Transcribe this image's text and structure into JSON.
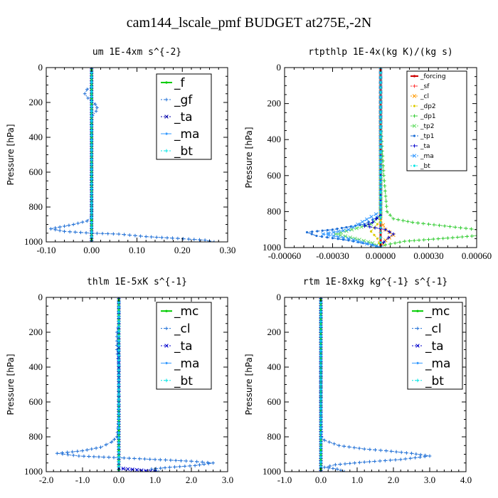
{
  "figure_title": "cam144_lscale_pmf  BUDGET at275E,-2N",
  "chart_data": [
    {
      "type": "line",
      "title": "um  1E-4xm s^{-2}",
      "ylabel": "Pressure [hPa]",
      "xlim": [
        -0.1,
        0.3
      ],
      "ylim": [
        1000,
        0
      ],
      "xticks": [
        "-0.10",
        "0.00",
        "0.10",
        "0.20",
        "0.30"
      ],
      "xtick_values": [
        -0.1,
        0.0,
        0.1,
        0.2,
        0.3
      ],
      "yticks": [
        "0",
        "200",
        "400",
        "600",
        "800",
        "1000"
      ],
      "ytick_values": [
        0,
        200,
        400,
        600,
        800,
        1000
      ],
      "legend_style": "large",
      "series": [
        {
          "name": "_f",
          "color": "#00cc00",
          "dash": "",
          "width": 3,
          "points": [
            [
              0,
              0
            ],
            [
              0,
              100
            ],
            [
              0,
              200
            ],
            [
              0,
              300
            ],
            [
              0,
              400
            ],
            [
              0,
              500
            ],
            [
              0,
              600
            ],
            [
              0,
              700
            ],
            [
              0,
              800
            ],
            [
              0,
              900
            ],
            [
              0,
              1000
            ]
          ]
        },
        {
          "name": "_gf",
          "color": "#1f6fd6",
          "dash": "2,2",
          "width": 1,
          "points": [
            [
              0,
              0
            ],
            [
              0,
              110
            ],
            [
              -0.01,
              125
            ],
            [
              -0.015,
              150
            ],
            [
              -0.008,
              175
            ],
            [
              0,
              190
            ],
            [
              0.008,
              210
            ],
            [
              0.012,
              230
            ],
            [
              0.01,
              250
            ],
            [
              0.002,
              275
            ],
            [
              0,
              300
            ],
            [
              0,
              500
            ],
            [
              0,
              700
            ],
            [
              0,
              850
            ],
            [
              -0.01,
              880
            ],
            [
              -0.04,
              900
            ],
            [
              -0.09,
              925
            ],
            [
              -0.06,
              940
            ],
            [
              0,
              950
            ],
            [
              0.06,
              955
            ],
            [
              0.12,
              970
            ],
            [
              0.19,
              980
            ],
            [
              0.25,
              990
            ],
            [
              0.27,
              1000
            ]
          ]
        },
        {
          "name": "_ta",
          "color": "#0000aa",
          "dash": "2,2",
          "width": 1,
          "points": [
            [
              0,
              0
            ],
            [
              0,
              500
            ],
            [
              0,
              1000
            ]
          ]
        },
        {
          "name": "_ma",
          "color": "#3399ff",
          "dash": "6,3",
          "width": 1,
          "points": [
            [
              0,
              0
            ],
            [
              0,
              500
            ],
            [
              0,
              1000
            ]
          ]
        },
        {
          "name": "_bt",
          "color": "#00e5e5",
          "dash": "2,2",
          "width": 1,
          "points": [
            [
              0,
              0
            ],
            [
              0,
              500
            ],
            [
              0,
              1000
            ]
          ]
        }
      ]
    },
    {
      "type": "line",
      "title": "rtpthlp  1E-4x(kg K)/(kg s)",
      "ylabel": "Pressure [hPa]",
      "xlim": [
        -0.0006,
        0.0006
      ],
      "ylim": [
        1000,
        0
      ],
      "xticks": [
        "-0.00060",
        "-0.00030",
        "0.00000",
        "0.00030",
        "0.00060"
      ],
      "xtick_values": [
        -0.0006,
        -0.0003,
        0.0,
        0.0003,
        0.0006
      ],
      "yticks": [
        "0",
        "200",
        "400",
        "600",
        "800",
        "1000"
      ],
      "ytick_values": [
        0,
        200,
        400,
        600,
        800,
        1000
      ],
      "legend_style": "small",
      "series": [
        {
          "name": "_forcing",
          "color": "#cc0000",
          "dash": "",
          "width": 3,
          "points": [
            [
              0,
              0
            ],
            [
              0,
              200
            ],
            [
              0,
              400
            ],
            [
              0,
              600
            ],
            [
              0,
              800
            ],
            [
              0,
              1000
            ]
          ]
        },
        {
          "name": "_sf",
          "color": "#ff3333",
          "dash": "2,2",
          "width": 1,
          "points": [
            [
              0,
              0
            ],
            [
              0,
              500
            ],
            [
              0,
              1000
            ]
          ]
        },
        {
          "name": "_cl",
          "color": "#ff9900",
          "dash": "2,2",
          "width": 1,
          "points": [
            [
              0,
              0
            ],
            [
              0,
              850
            ],
            [
              3e-05,
              900
            ],
            [
              8e-05,
              930
            ],
            [
              3e-05,
              960
            ],
            [
              0,
              1000
            ]
          ]
        },
        {
          "name": "_dp2",
          "color": "#ddcc00",
          "dash": "2,2",
          "width": 1,
          "points": [
            [
              0,
              0
            ],
            [
              0,
              850
            ],
            [
              -6e-05,
              910
            ],
            [
              -2e-05,
              950
            ],
            [
              0,
              1000
            ]
          ]
        },
        {
          "name": "_dp1",
          "color": "#33cc33",
          "dash": "2,2",
          "width": 1,
          "points": [
            [
              0,
              0
            ],
            [
              0,
              300
            ],
            [
              2e-05,
              600
            ],
            [
              4e-05,
              800
            ],
            [
              8e-05,
              840
            ],
            [
              0.0002,
              860
            ],
            [
              0.0004,
              880
            ],
            [
              0.0006,
              900
            ],
            [
              0.00072,
              925
            ],
            [
              0.00045,
              945
            ],
            [
              0.00015,
              965
            ],
            [
              3e-05,
              985
            ],
            [
              0,
              1000
            ]
          ]
        },
        {
          "name": "_tp2",
          "color": "#66dd66",
          "dash": "6,3",
          "width": 1,
          "points": [
            [
              0,
              0
            ],
            [
              0,
              820
            ],
            [
              -6e-05,
              870
            ],
            [
              -0.00018,
              900
            ],
            [
              -0.00028,
              925
            ],
            [
              -0.00016,
              950
            ],
            [
              -5e-05,
              975
            ],
            [
              0,
              1000
            ]
          ]
        },
        {
          "name": "_tp1",
          "color": "#1f6fd6",
          "dash": "6,3",
          "width": 1,
          "points": [
            [
              0,
              0
            ],
            [
              0,
              820
            ],
            [
              -0.0001,
              870
            ],
            [
              -0.0003,
              900
            ],
            [
              -0.00046,
              915
            ],
            [
              -0.0004,
              935
            ],
            [
              -0.0002,
              960
            ],
            [
              -5e-05,
              985
            ],
            [
              0,
              1000
            ]
          ]
        },
        {
          "name": "_ta",
          "color": "#0000cc",
          "dash": "2,2",
          "width": 1,
          "points": [
            [
              0,
              0
            ],
            [
              0,
              820
            ],
            [
              -5e-05,
              860
            ],
            [
              -0.0001,
              880
            ],
            [
              3e-05,
              900
            ],
            [
              8e-05,
              925
            ],
            [
              5e-05,
              945
            ],
            [
              2e-05,
              970
            ],
            [
              0,
              1000
            ]
          ]
        },
        {
          "name": "_ma",
          "color": "#3399ff",
          "dash": "6,3",
          "width": 1,
          "points": [
            [
              0,
              0
            ],
            [
              0,
              800
            ],
            [
              -0.0002,
              900
            ],
            [
              -0.00036,
              925
            ],
            [
              -0.0002,
              950
            ],
            [
              0,
              1000
            ]
          ]
        },
        {
          "name": "_bt",
          "color": "#00e5e5",
          "dash": "2,2",
          "width": 1,
          "points": [
            [
              0,
              0
            ],
            [
              0,
              500
            ],
            [
              0,
              1000
            ]
          ]
        }
      ]
    },
    {
      "type": "line",
      "title": "thlm  1E-5xK s^{-1}",
      "ylabel": "Pressure [hPa]",
      "xlim": [
        -2.0,
        3.0
      ],
      "ylim": [
        1000,
        0
      ],
      "xticks": [
        "-2.0",
        "-1.0",
        "0.0",
        "1.0",
        "2.0",
        "3.0"
      ],
      "xtick_values": [
        -2.0,
        -1.0,
        0.0,
        1.0,
        2.0,
        3.0
      ],
      "yticks": [
        "0",
        "200",
        "400",
        "600",
        "800",
        "1000"
      ],
      "ytick_values": [
        0,
        200,
        400,
        600,
        800,
        1000
      ],
      "legend_style": "large",
      "series": [
        {
          "name": "_mc",
          "color": "#00cc00",
          "dash": "",
          "width": 3,
          "points": [
            [
              0,
              0
            ],
            [
              0,
              200
            ],
            [
              0,
              400
            ],
            [
              0,
              600
            ],
            [
              0,
              800
            ],
            [
              0,
              1000
            ]
          ]
        },
        {
          "name": "_cl",
          "color": "#1f6fd6",
          "dash": "2,2",
          "width": 1,
          "points": [
            [
              0,
              0
            ],
            [
              0,
              150
            ],
            [
              -0.05,
              200
            ],
            [
              -0.05,
              300
            ],
            [
              0,
              400
            ],
            [
              0,
              700
            ],
            [
              -0.05,
              800
            ],
            [
              -0.2,
              830
            ],
            [
              -0.5,
              860
            ],
            [
              -1.0,
              880
            ],
            [
              -1.7,
              895
            ],
            [
              -1.1,
              910
            ],
            [
              0,
              920
            ],
            [
              1.0,
              930
            ],
            [
              2.0,
              940
            ],
            [
              2.6,
              950
            ],
            [
              2.1,
              965
            ],
            [
              1.4,
              975
            ],
            [
              0.9,
              985
            ],
            [
              1.1,
              1000
            ]
          ]
        },
        {
          "name": "_ta",
          "color": "#0000cc",
          "dash": "2,2",
          "width": 1,
          "points": [
            [
              0,
              0
            ],
            [
              0,
              980
            ],
            [
              0.5,
              990
            ],
            [
              1.0,
              1000
            ]
          ]
        },
        {
          "name": "_ma",
          "color": "#3399ff",
          "dash": "6,3",
          "width": 1,
          "points": [
            [
              0,
              0
            ],
            [
              0,
              500
            ],
            [
              0,
              1000
            ]
          ]
        },
        {
          "name": "_bt",
          "color": "#00e5e5",
          "dash": "2,2",
          "width": 1,
          "points": [
            [
              0,
              0
            ],
            [
              0,
              500
            ],
            [
              0,
              1000
            ]
          ]
        }
      ]
    },
    {
      "type": "line",
      "title": "rtm  1E-8xkg kg^{-1} s^{-1}",
      "ylabel": "Pressure [hPa]",
      "xlim": [
        -1.0,
        4.0
      ],
      "ylim": [
        1000,
        0
      ],
      "xticks": [
        "-1.0",
        "0.0",
        "1.0",
        "2.0",
        "3.0",
        "4.0"
      ],
      "xtick_values": [
        -1.0,
        0.0,
        1.0,
        2.0,
        3.0,
        4.0
      ],
      "yticks": [
        "0",
        "200",
        "400",
        "600",
        "800",
        "1000"
      ],
      "ytick_values": [
        0,
        200,
        400,
        600,
        800,
        1000
      ],
      "legend_style": "large",
      "series": [
        {
          "name": "_mc",
          "color": "#00cc00",
          "dash": "",
          "width": 3,
          "points": [
            [
              0,
              0
            ],
            [
              0,
              200
            ],
            [
              0,
              400
            ],
            [
              0,
              600
            ],
            [
              0,
              800
            ],
            [
              0,
              1000
            ]
          ]
        },
        {
          "name": "_cl",
          "color": "#1f6fd6",
          "dash": "2,2",
          "width": 1,
          "points": [
            [
              0,
              0
            ],
            [
              0,
              600
            ],
            [
              0.02,
              800
            ],
            [
              0.1,
              820
            ],
            [
              0.5,
              850
            ],
            [
              1.2,
              870
            ],
            [
              1.8,
              880
            ],
            [
              2.5,
              895
            ],
            [
              3.0,
              910
            ],
            [
              2.2,
              930
            ],
            [
              1.2,
              945
            ],
            [
              0.4,
              960
            ],
            [
              0.1,
              975
            ],
            [
              0.45,
              985
            ],
            [
              0.65,
              1000
            ]
          ]
        },
        {
          "name": "_ta",
          "color": "#0000cc",
          "dash": "2,2",
          "width": 1,
          "points": [
            [
              0,
              0
            ],
            [
              0,
              500
            ],
            [
              0,
              1000
            ]
          ]
        },
        {
          "name": "_ma",
          "color": "#3399ff",
          "dash": "6,3",
          "width": 1,
          "points": [
            [
              0,
              0
            ],
            [
              0,
              500
            ],
            [
              0,
              1000
            ]
          ]
        },
        {
          "name": "_bt",
          "color": "#00e5e5",
          "dash": "2,2",
          "width": 1,
          "points": [
            [
              0,
              0
            ],
            [
              0,
              500
            ],
            [
              0,
              1000
            ]
          ]
        }
      ]
    }
  ]
}
